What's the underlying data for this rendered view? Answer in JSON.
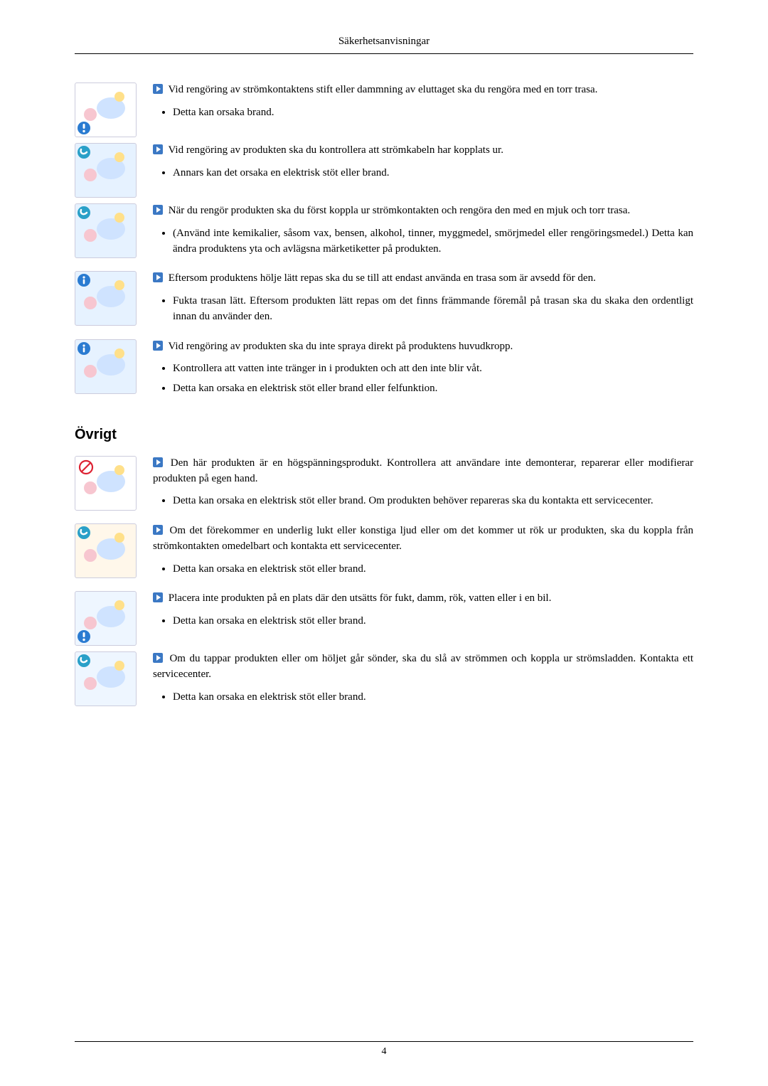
{
  "header": {
    "title": "Säkerhetsanvisningar"
  },
  "footer": {
    "page_number": "4"
  },
  "icon": {
    "arrow_fill": "#3b78c4",
    "arrow_tri": "#ffffff"
  },
  "section2_title": "Övrigt",
  "items": [
    {
      "lead": "Vid rengöring av strömkontaktens stift eller dammning av eluttaget ska du rengöra med en torr trasa.",
      "bullets": [
        "Detta kan orsaka brand."
      ],
      "thumb": {
        "bg": "#ffffff",
        "badge": "warn"
      }
    },
    {
      "lead": "Vid rengöring av produkten ska du kontrollera att strömkabeln har kopplats ur.",
      "bullets": [
        "Annars kan det orsaka en elektrisk stöt eller brand."
      ],
      "thumb": {
        "bg": "#e6f2ff",
        "badge": "info"
      }
    },
    {
      "lead": "När du rengör produkten ska du först koppla ur strömkontakten och rengöra den med en mjuk och torr trasa.",
      "bullets": [
        "(Använd inte kemikalier, såsom vax, bensen, alkohol, tinner, myggmedel, smörjmedel eller rengöringsmedel.) Detta kan ändra produktens yta och avlägsna märketiketter på produkten."
      ],
      "thumb": {
        "bg": "#e6f2ff",
        "badge": "info"
      }
    },
    {
      "lead": "Eftersom produktens hölje lätt repas ska du se till att endast använda en trasa som är avsedd för den.",
      "bullets": [
        "Fukta trasan lätt. Eftersom produkten lätt repas om det finns främmande föremål på trasan ska du skaka den ordentligt innan du använder den."
      ],
      "thumb": {
        "bg": "#e6f2ff",
        "badge": "note"
      }
    },
    {
      "lead": "Vid rengöring av produkten ska du inte spraya direkt på produktens huvudkropp.",
      "bullets": [
        "Kontrollera att vatten inte tränger in i produkten och att den inte blir våt.",
        "Detta kan orsaka en elektrisk stöt eller brand eller felfunktion."
      ],
      "thumb": {
        "bg": "#e6f2ff",
        "badge": "note"
      }
    }
  ],
  "items2": [
    {
      "lead": "Den här produkten är en högspänningsprodukt. Kontrollera att användare inte demonterar, reparerar eller modifierar produkten på egen hand.",
      "bullets": [
        "Detta kan orsaka en elektrisk stöt eller brand. Om produkten behöver repareras ska du kontakta ett servicecenter."
      ],
      "thumb": {
        "bg": "#ffffff",
        "badge": "prohibit"
      }
    },
    {
      "lead": "Om det förekommer en underlig lukt eller konstiga ljud eller om det kommer ut rök ur produkten, ska du koppla från strömkontakten omedelbart och kontakta ett servicecenter.",
      "bullets": [
        "Detta kan orsaka en elektrisk stöt eller brand."
      ],
      "thumb": {
        "bg": "#fff7ea",
        "badge": "info"
      }
    },
    {
      "lead": "Placera inte produkten på en plats där den utsätts för fukt, damm, rök, vatten eller i en bil.",
      "bullets": [
        "Detta kan orsaka en elektrisk stöt eller brand."
      ],
      "thumb": {
        "bg": "#eef6ff",
        "badge": "warn"
      }
    },
    {
      "lead": "Om du tappar produkten eller om höljet går sönder, ska du slå av strömmen och koppla ur strömsladden. Kontakta ett servicecenter.",
      "bullets": [
        "Detta kan orsaka en elektrisk stöt eller brand."
      ],
      "thumb": {
        "bg": "#eef6ff",
        "badge": "info"
      }
    }
  ]
}
